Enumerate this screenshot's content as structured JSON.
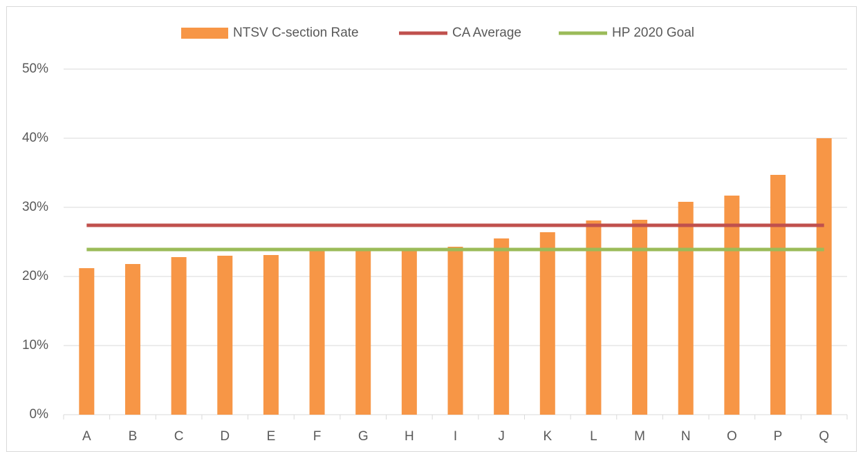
{
  "chart_data": {
    "type": "bar",
    "categories": [
      "A",
      "B",
      "C",
      "D",
      "E",
      "F",
      "G",
      "H",
      "I",
      "J",
      "K",
      "L",
      "M",
      "N",
      "O",
      "P",
      "Q"
    ],
    "series": [
      {
        "name": "NTSV C-section Rate",
        "type": "bar",
        "color": "#f79646",
        "values": [
          21.2,
          21.8,
          22.8,
          23.0,
          23.1,
          24.0,
          24.1,
          24.1,
          24.3,
          25.5,
          26.4,
          28.1,
          28.2,
          30.8,
          31.7,
          34.7,
          40.0
        ]
      },
      {
        "name": "CA Average",
        "type": "line",
        "color": "#c0504d",
        "values": [
          27.4,
          27.4,
          27.4,
          27.4,
          27.4,
          27.4,
          27.4,
          27.4,
          27.4,
          27.4,
          27.4,
          27.4,
          27.4,
          27.4,
          27.4,
          27.4,
          27.4
        ]
      },
      {
        "name": "HP 2020 Goal",
        "type": "line",
        "color": "#9bbb59",
        "values": [
          23.9,
          23.9,
          23.9,
          23.9,
          23.9,
          23.9,
          23.9,
          23.9,
          23.9,
          23.9,
          23.9,
          23.9,
          23.9,
          23.9,
          23.9,
          23.9,
          23.9
        ]
      }
    ],
    "ylim": [
      0,
      50
    ],
    "yticks": [
      {
        "value": 0,
        "label": "0%"
      },
      {
        "value": 10,
        "label": "10%"
      },
      {
        "value": 20,
        "label": "20%"
      },
      {
        "value": 30,
        "label": "30%"
      },
      {
        "value": 40,
        "label": "40%"
      },
      {
        "value": 50,
        "label": "50%"
      }
    ],
    "grid": true,
    "legend": "top"
  }
}
